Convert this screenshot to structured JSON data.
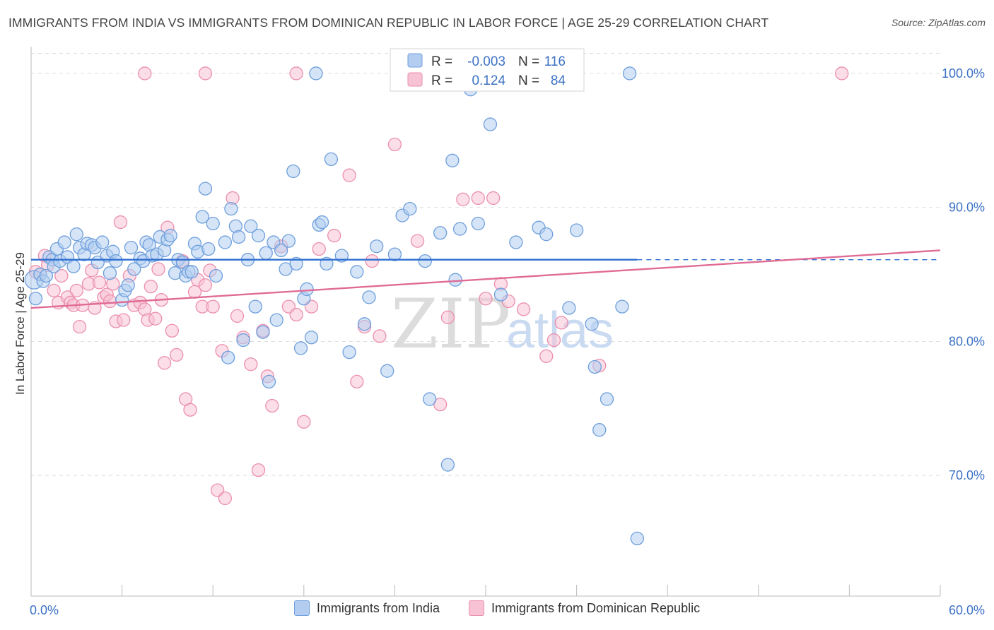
{
  "header": {
    "title": "IMMIGRANTS FROM INDIA VS IMMIGRANTS FROM DOMINICAN REPUBLIC IN LABOR FORCE | AGE 25-29 CORRELATION CHART",
    "source": "Source: ZipAtlas.com"
  },
  "colors": {
    "india_fill": "#b3cdf0",
    "india_stroke": "#6e9fdc",
    "india_line": "#2f6fd0",
    "dr_fill": "#f7c3d4",
    "dr_stroke": "#eb8fae",
    "dr_line": "#e06b95",
    "axis_label": "#3d72c4",
    "grid": "#dddddd"
  },
  "stats": {
    "r_label": "R =",
    "n_label": "N =",
    "india": {
      "r": "-0.003",
      "n": "116"
    },
    "dr": {
      "r": "0.124",
      "n": "84"
    }
  },
  "watermark": {
    "zip": "ZIP",
    "atlas": "atlas"
  },
  "chart_data": {
    "type": "scatter",
    "title": "IMMIGRANTS FROM INDIA VS IMMIGRANTS FROM DOMINICAN REPUBLIC IN LABOR FORCE | AGE 25-29 CORRELATION CHART",
    "xlabel": "",
    "ylabel": "In Labor Force | Age 25-29",
    "xlim": [
      0,
      60
    ],
    "ylim": [
      61,
      102
    ],
    "x_tick_labels": [
      "0.0%",
      "60.0%"
    ],
    "y_ticks": [
      70,
      80,
      90,
      100
    ],
    "y_tick_labels": [
      "70.0%",
      "80.0%",
      "90.0%",
      "100.0%"
    ],
    "grid": true,
    "legend_position": "bottom",
    "series": [
      {
        "name": "Immigrants from India",
        "color": "#6e9fdc",
        "trend": {
          "x": [
            0,
            40
          ],
          "y": [
            86.1,
            86.1
          ],
          "dashed_to": 60
        },
        "points": [
          [
            0.2,
            84.6
          ],
          [
            0.3,
            83.2
          ],
          [
            0.6,
            85
          ],
          [
            0.8,
            84.5
          ],
          [
            1,
            84.9
          ],
          [
            1.2,
            86.3
          ],
          [
            1.4,
            86.1
          ],
          [
            1.5,
            85.6
          ],
          [
            1.7,
            86.9
          ],
          [
            1.9,
            86
          ],
          [
            2.2,
            87.4
          ],
          [
            2.4,
            86.3
          ],
          [
            2.8,
            85.6
          ],
          [
            3,
            88
          ],
          [
            3.2,
            87
          ],
          [
            3.5,
            86.5
          ],
          [
            3.7,
            87.3
          ],
          [
            4,
            87.2
          ],
          [
            4.2,
            87
          ],
          [
            4.4,
            85.9
          ],
          [
            4.7,
            87.4
          ],
          [
            5,
            86.4
          ],
          [
            5.2,
            85.1
          ],
          [
            5.4,
            86.7
          ],
          [
            5.6,
            86
          ],
          [
            6,
            83.1
          ],
          [
            6.2,
            83.8
          ],
          [
            6.4,
            84.2
          ],
          [
            6.6,
            87
          ],
          [
            6.8,
            85.4
          ],
          [
            7.2,
            86.2
          ],
          [
            7.4,
            86
          ],
          [
            7.6,
            87.4
          ],
          [
            7.8,
            87.2
          ],
          [
            8,
            86.4
          ],
          [
            8.3,
            86.5
          ],
          [
            8.5,
            87.8
          ],
          [
            8.8,
            86.8
          ],
          [
            9,
            87.6
          ],
          [
            9.2,
            87.9
          ],
          [
            9.5,
            85.1
          ],
          [
            9.7,
            86.1
          ],
          [
            10,
            85.9
          ],
          [
            10.2,
            84.9
          ],
          [
            10.4,
            85.2
          ],
          [
            10.6,
            85.2
          ],
          [
            10.8,
            87.3
          ],
          [
            11,
            86.7
          ],
          [
            11.3,
            89.3
          ],
          [
            11.5,
            91.4
          ],
          [
            11.7,
            86.9
          ],
          [
            12,
            88.8
          ],
          [
            12.2,
            84.9
          ],
          [
            12.8,
            87.4
          ],
          [
            13,
            78.8
          ],
          [
            13.2,
            89.9
          ],
          [
            13.5,
            88.6
          ],
          [
            13.7,
            87.8
          ],
          [
            14,
            80.1
          ],
          [
            14.3,
            86.1
          ],
          [
            14.5,
            88.6
          ],
          [
            14.8,
            82.6
          ],
          [
            15,
            87.9
          ],
          [
            15.3,
            80.7
          ],
          [
            15.5,
            86.6
          ],
          [
            15.7,
            77
          ],
          [
            16,
            87.4
          ],
          [
            16.2,
            81.6
          ],
          [
            16.5,
            86.8
          ],
          [
            16.8,
            85.4
          ],
          [
            17,
            87.5
          ],
          [
            17.3,
            92.7
          ],
          [
            17.5,
            85.8
          ],
          [
            17.8,
            79.5
          ],
          [
            18,
            83.2
          ],
          [
            18.2,
            83.9
          ],
          [
            18.5,
            80.3
          ],
          [
            18.8,
            100
          ],
          [
            19,
            88.7
          ],
          [
            19.2,
            88.9
          ],
          [
            19.5,
            85.8
          ],
          [
            19.8,
            93.6
          ],
          [
            20.5,
            86.4
          ],
          [
            21,
            79.2
          ],
          [
            21.5,
            85.2
          ],
          [
            22,
            81.3
          ],
          [
            22.3,
            83.3
          ],
          [
            22.8,
            87.1
          ],
          [
            23.5,
            77.8
          ],
          [
            24,
            86.5
          ],
          [
            24.5,
            89.4
          ],
          [
            25,
            89.9
          ],
          [
            26,
            86
          ],
          [
            26.3,
            75.7
          ],
          [
            27,
            88.1
          ],
          [
            27.5,
            70.8
          ],
          [
            27.8,
            93.5
          ],
          [
            28,
            84.6
          ],
          [
            28.3,
            88.4
          ],
          [
            29,
            98.8
          ],
          [
            29.5,
            88.8
          ],
          [
            30.3,
            96.2
          ],
          [
            31,
            83.5
          ],
          [
            32,
            87.4
          ],
          [
            33.5,
            88.5
          ],
          [
            34,
            88
          ],
          [
            35,
            100
          ],
          [
            35.5,
            82.5
          ],
          [
            36,
            88.3
          ],
          [
            37,
            81.3
          ],
          [
            37.2,
            78.1
          ],
          [
            37.5,
            73.4
          ],
          [
            38,
            75.7
          ],
          [
            39,
            82.6
          ],
          [
            39.5,
            100
          ],
          [
            40,
            65.3
          ]
        ]
      },
      {
        "name": "Immigrants from Dominican Republic",
        "color": "#eb8fae",
        "trend": {
          "x": [
            0,
            60
          ],
          "y": [
            82.5,
            86.8
          ]
        },
        "points": [
          [
            0.3,
            85.2
          ],
          [
            0.6,
            85
          ],
          [
            0.9,
            86.4
          ],
          [
            1.1,
            85.7
          ],
          [
            1.5,
            83.8
          ],
          [
            1.8,
            82.9
          ],
          [
            2,
            84.9
          ],
          [
            2.4,
            83.3
          ],
          [
            2.6,
            82.9
          ],
          [
            2.8,
            82.7
          ],
          [
            3,
            83.8
          ],
          [
            3.2,
            81.1
          ],
          [
            3.4,
            82.7
          ],
          [
            3.8,
            84.3
          ],
          [
            4,
            85.3
          ],
          [
            4.2,
            82.5
          ],
          [
            4.5,
            84.4
          ],
          [
            4.8,
            83.3
          ],
          [
            5,
            83.5
          ],
          [
            5.2,
            83
          ],
          [
            5.4,
            84.3
          ],
          [
            5.6,
            81.5
          ],
          [
            5.9,
            88.9
          ],
          [
            6.1,
            81.6
          ],
          [
            6.5,
            84.9
          ],
          [
            6.8,
            82.7
          ],
          [
            7.2,
            82.9
          ],
          [
            7.5,
            82.4
          ],
          [
            7.7,
            81.6
          ],
          [
            7.9,
            84.1
          ],
          [
            8.2,
            81.7
          ],
          [
            8.4,
            85.4
          ],
          [
            8.6,
            83.1
          ],
          [
            8.8,
            78.4
          ],
          [
            9,
            88.5
          ],
          [
            9.3,
            80.8
          ],
          [
            9.6,
            79
          ],
          [
            10,
            86
          ],
          [
            10.2,
            75.7
          ],
          [
            10.5,
            74.9
          ],
          [
            10.8,
            83.7
          ],
          [
            11,
            84.6
          ],
          [
            11.3,
            82.6
          ],
          [
            11.5,
            84.2
          ],
          [
            11.8,
            85.3
          ],
          [
            12,
            82.6
          ],
          [
            12.3,
            68.9
          ],
          [
            12.6,
            79.3
          ],
          [
            12.8,
            68.3
          ],
          [
            13.3,
            90.7
          ],
          [
            13.6,
            81.9
          ],
          [
            14,
            80.3
          ],
          [
            14.5,
            78.3
          ],
          [
            15,
            70.4
          ],
          [
            15.3,
            80.8
          ],
          [
            15.6,
            77.4
          ],
          [
            15.9,
            75.2
          ],
          [
            16.5,
            87.1
          ],
          [
            17,
            82.6
          ],
          [
            17.5,
            82
          ],
          [
            18,
            74
          ],
          [
            18.5,
            82.6
          ],
          [
            19,
            86.9
          ],
          [
            20,
            87.9
          ],
          [
            21,
            92.4
          ],
          [
            21.5,
            77
          ],
          [
            22,
            81.1
          ],
          [
            22.5,
            86
          ],
          [
            23,
            80.4
          ],
          [
            24,
            94.7
          ],
          [
            25.5,
            87.5
          ],
          [
            27,
            75.3
          ],
          [
            27.5,
            81.8
          ],
          [
            28.5,
            90.6
          ],
          [
            29.5,
            90.7
          ],
          [
            30,
            83.2
          ],
          [
            30.5,
            90.7
          ],
          [
            31,
            84.3
          ],
          [
            31.5,
            83
          ],
          [
            32.5,
            82.4
          ],
          [
            34,
            78.9
          ],
          [
            34.5,
            80.1
          ],
          [
            35,
            81.4
          ],
          [
            37.5,
            78.2
          ]
        ]
      }
    ],
    "extra_points_off_axis": [
      {
        "series": 1,
        "xy": [
          7.5,
          100
        ]
      },
      {
        "series": 1,
        "xy": [
          11.5,
          100
        ]
      },
      {
        "series": 1,
        "xy": [
          17.5,
          100
        ]
      },
      {
        "series": 1,
        "xy": [
          53.5,
          100
        ]
      }
    ]
  },
  "legend": {
    "items": [
      {
        "label": "Immigrants from India"
      },
      {
        "label": "Immigrants from Dominican Republic"
      }
    ]
  }
}
